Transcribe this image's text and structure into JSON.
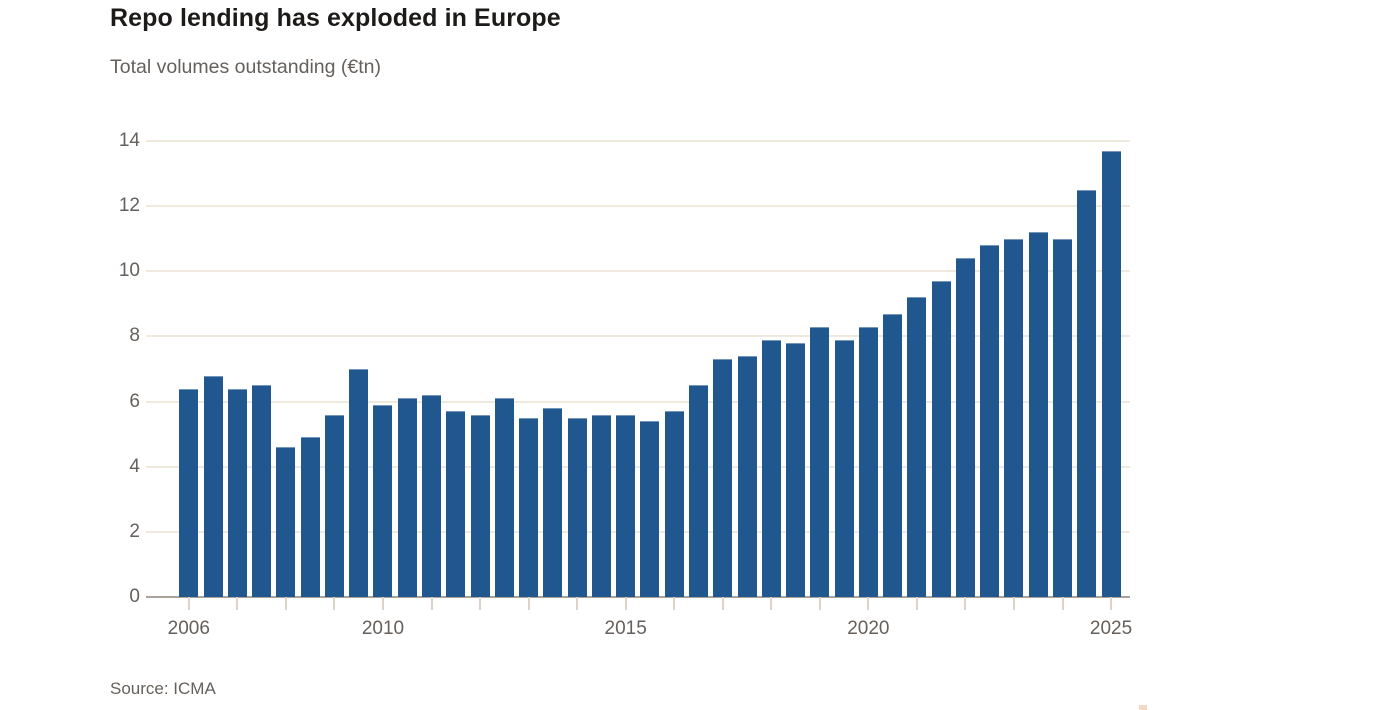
{
  "header": {
    "title": "Repo lending has exploded in Europe",
    "subtitle": "Total volumes outstanding (€tn)"
  },
  "footer": {
    "source": "Source: ICMA"
  },
  "chart_data": {
    "type": "bar",
    "title": "Repo lending has exploded in Europe",
    "subtitle": "Total volumes outstanding (€tn)",
    "unit": "€tn",
    "frequency": "semi-annual",
    "start_year": 2006,
    "values": [
      6.4,
      6.8,
      6.4,
      6.5,
      4.6,
      4.9,
      5.6,
      7.0,
      5.9,
      6.1,
      6.2,
      5.7,
      5.6,
      6.1,
      5.5,
      5.8,
      5.5,
      5.6,
      5.6,
      5.4,
      5.7,
      6.5,
      7.3,
      7.4,
      7.9,
      7.8,
      8.3,
      7.9,
      8.3,
      8.7,
      9.2,
      9.7,
      10.4,
      10.8,
      11.0,
      11.2,
      11.0,
      12.5,
      13.7
    ],
    "ylim": [
      0,
      14
    ],
    "y_ticks": [
      0,
      2,
      4,
      6,
      8,
      10,
      12,
      14
    ],
    "x_tick_labels": [
      "2006",
      "2010",
      "2015",
      "2020",
      "2025"
    ],
    "x_tick_bar_index": [
      0,
      8,
      18,
      28,
      38
    ],
    "grid": "horizontal-only",
    "legend": "none",
    "colors": {
      "bar": "#20578f",
      "bar_edge": "#7496b9",
      "gridline": "#f0e9de",
      "axis_line": "#aaa39c",
      "tick": "#ddd4c9",
      "label_text": "#66605c",
      "title_text": "#1d1b19",
      "background": "#ffffff"
    }
  }
}
